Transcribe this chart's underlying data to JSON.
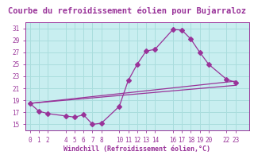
{
  "title": "Courbe du refroidissement éolien pour Bujarraloz",
  "xlabel": "Windchill (Refroidissement éolien,°C)",
  "ylabel": "",
  "bg_color": "#c8eef0",
  "grid_color": "#aadddd",
  "line_color": "#993399",
  "marker_color": "#993399",
  "xticks": [
    0,
    1,
    2,
    4,
    5,
    6,
    7,
    8,
    10,
    11,
    12,
    13,
    14,
    16,
    17,
    18,
    19,
    20,
    22,
    23
  ],
  "yticks": [
    15,
    17,
    19,
    21,
    23,
    25,
    27,
    29,
    31
  ],
  "ylim": [
    14.0,
    32.0
  ],
  "xlim": [
    -0.5,
    24.5
  ],
  "line1_x": [
    0,
    1,
    2,
    4,
    5,
    6,
    7,
    8,
    10,
    11,
    12,
    13,
    14,
    16,
    17,
    18,
    19,
    20,
    22,
    23
  ],
  "line1_y": [
    18.5,
    17.2,
    16.8,
    16.4,
    16.2,
    16.6,
    15.0,
    15.2,
    18.0,
    22.3,
    25.0,
    27.2,
    27.5,
    30.8,
    30.7,
    29.2,
    27.0,
    25.0,
    22.5,
    22.0
  ],
  "line2_x": [
    0,
    23
  ],
  "line2_y": [
    18.5,
    22.2
  ],
  "line3_x": [
    0,
    23
  ],
  "line3_y": [
    18.5,
    21.5
  ],
  "title_bg": "#ffffff",
  "title_color": "#993399",
  "title_fontsize": 7.5
}
